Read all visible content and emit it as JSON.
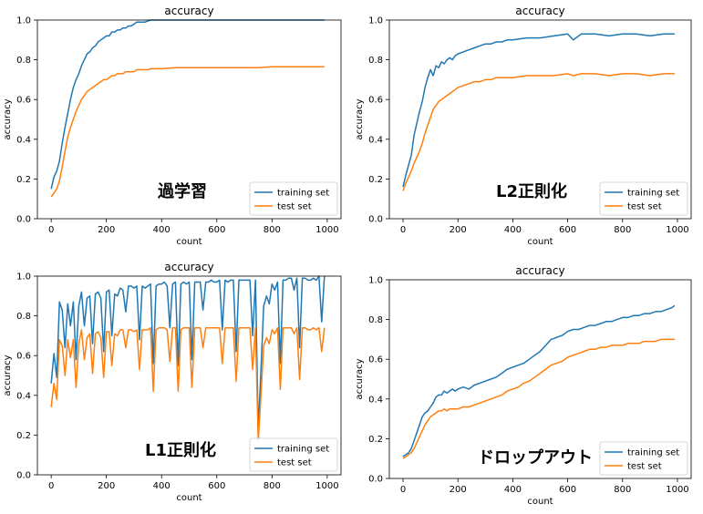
{
  "chart_data": [
    {
      "type": "line",
      "title": "accuracy",
      "xlabel": "count",
      "ylabel": "accuracy",
      "annotation": "過学習",
      "xlim": [
        -50,
        1050
      ],
      "ylim": [
        0,
        1.0
      ],
      "xticks": [
        "0",
        "200",
        "400",
        "600",
        "800",
        "1000"
      ],
      "yticks": [
        "0.0",
        "0.2",
        "0.4",
        "0.6",
        "0.8",
        "1.0"
      ],
      "legend": "lower-right",
      "x": [
        0,
        10,
        20,
        30,
        40,
        50,
        60,
        70,
        80,
        90,
        100,
        110,
        120,
        130,
        140,
        150,
        160,
        170,
        180,
        190,
        200,
        210,
        220,
        230,
        240,
        250,
        260,
        270,
        280,
        290,
        300,
        310,
        320,
        330,
        340,
        350,
        360,
        370,
        380,
        390,
        400,
        450,
        500,
        550,
        600,
        650,
        700,
        750,
        800,
        850,
        900,
        950,
        990
      ],
      "series": [
        {
          "name": "training set",
          "color": "#1f77b4",
          "values": [
            0.15,
            0.21,
            0.24,
            0.29,
            0.38,
            0.46,
            0.53,
            0.6,
            0.66,
            0.7,
            0.73,
            0.77,
            0.8,
            0.83,
            0.84,
            0.86,
            0.87,
            0.89,
            0.9,
            0.91,
            0.92,
            0.92,
            0.94,
            0.94,
            0.95,
            0.95,
            0.96,
            0.96,
            0.97,
            0.97,
            0.98,
            0.99,
            0.99,
            0.99,
            0.99,
            0.995,
            1.0,
            1.0,
            1.0,
            1.0,
            1.0,
            1.0,
            1.0,
            1.0,
            1.0,
            1.0,
            1.0,
            1.0,
            1.0,
            1.0,
            1.0,
            1.0,
            1.0
          ]
        },
        {
          "name": "test set",
          "color": "#ff7f0e",
          "values": [
            0.11,
            0.13,
            0.15,
            0.19,
            0.26,
            0.34,
            0.41,
            0.46,
            0.5,
            0.54,
            0.57,
            0.6,
            0.62,
            0.64,
            0.65,
            0.66,
            0.67,
            0.68,
            0.69,
            0.7,
            0.7,
            0.71,
            0.72,
            0.72,
            0.73,
            0.73,
            0.73,
            0.74,
            0.74,
            0.74,
            0.74,
            0.75,
            0.75,
            0.75,
            0.75,
            0.75,
            0.755,
            0.755,
            0.755,
            0.755,
            0.755,
            0.76,
            0.76,
            0.76,
            0.76,
            0.76,
            0.76,
            0.76,
            0.765,
            0.765,
            0.765,
            0.765,
            0.765
          ]
        }
      ]
    },
    {
      "type": "line",
      "title": "accuracy",
      "xlabel": "count",
      "ylabel": "accuracy",
      "annotation": "L2正則化",
      "xlim": [
        -50,
        1050
      ],
      "ylim": [
        0,
        1.0
      ],
      "xticks": [
        "0",
        "200",
        "400",
        "600",
        "800",
        "1000"
      ],
      "yticks": [
        "0.0",
        "0.2",
        "0.4",
        "0.6",
        "0.8",
        "1.0"
      ],
      "legend": "lower-right",
      "x": [
        0,
        10,
        20,
        30,
        40,
        50,
        60,
        70,
        80,
        90,
        100,
        110,
        120,
        130,
        140,
        150,
        160,
        170,
        180,
        190,
        200,
        220,
        240,
        260,
        280,
        300,
        320,
        340,
        360,
        380,
        400,
        450,
        500,
        550,
        600,
        620,
        650,
        700,
        750,
        800,
        850,
        900,
        950,
        990
      ],
      "series": [
        {
          "name": "training set",
          "color": "#1f77b4",
          "values": [
            0.16,
            0.22,
            0.27,
            0.32,
            0.42,
            0.48,
            0.54,
            0.59,
            0.66,
            0.71,
            0.75,
            0.72,
            0.77,
            0.76,
            0.79,
            0.78,
            0.8,
            0.81,
            0.8,
            0.82,
            0.83,
            0.84,
            0.85,
            0.86,
            0.87,
            0.88,
            0.88,
            0.89,
            0.89,
            0.9,
            0.9,
            0.91,
            0.91,
            0.92,
            0.93,
            0.9,
            0.93,
            0.93,
            0.92,
            0.93,
            0.93,
            0.92,
            0.93,
            0.93
          ]
        },
        {
          "name": "test set",
          "color": "#ff7f0e",
          "values": [
            0.14,
            0.18,
            0.21,
            0.24,
            0.28,
            0.31,
            0.34,
            0.38,
            0.43,
            0.47,
            0.51,
            0.55,
            0.57,
            0.59,
            0.6,
            0.61,
            0.62,
            0.63,
            0.64,
            0.65,
            0.66,
            0.67,
            0.68,
            0.69,
            0.69,
            0.7,
            0.7,
            0.71,
            0.71,
            0.71,
            0.71,
            0.72,
            0.72,
            0.72,
            0.73,
            0.72,
            0.73,
            0.73,
            0.72,
            0.73,
            0.73,
            0.72,
            0.73,
            0.73
          ]
        }
      ]
    },
    {
      "type": "line",
      "title": "accuracy",
      "xlabel": "count",
      "ylabel": "accuracy",
      "annotation": "L1正則化",
      "xlim": [
        -50,
        1050
      ],
      "ylim": [
        0,
        1.0
      ],
      "xticks": [
        "0",
        "200",
        "400",
        "600",
        "800",
        "1000"
      ],
      "yticks": [
        "0.0",
        "0.2",
        "0.4",
        "0.6",
        "0.8",
        "1.0"
      ],
      "legend": "lower-right",
      "x": [
        0,
        10,
        20,
        30,
        40,
        50,
        60,
        70,
        80,
        90,
        100,
        110,
        120,
        130,
        140,
        150,
        160,
        170,
        180,
        190,
        200,
        210,
        220,
        230,
        240,
        250,
        260,
        270,
        280,
        290,
        300,
        310,
        320,
        330,
        340,
        350,
        360,
        370,
        380,
        390,
        400,
        410,
        420,
        430,
        440,
        450,
        460,
        470,
        480,
        490,
        500,
        510,
        520,
        530,
        540,
        550,
        560,
        570,
        580,
        590,
        600,
        610,
        620,
        630,
        640,
        650,
        660,
        670,
        680,
        690,
        700,
        710,
        720,
        730,
        740,
        750,
        760,
        770,
        780,
        790,
        800,
        810,
        820,
        830,
        840,
        850,
        860,
        870,
        880,
        890,
        900,
        910,
        920,
        930,
        940,
        950,
        960,
        970,
        980,
        990
      ],
      "series": [
        {
          "name": "training set",
          "color": "#1f77b4",
          "values": [
            0.46,
            0.61,
            0.49,
            0.87,
            0.83,
            0.64,
            0.86,
            0.75,
            0.87,
            0.58,
            0.85,
            0.92,
            0.75,
            0.89,
            0.9,
            0.66,
            0.91,
            0.92,
            0.89,
            0.62,
            0.92,
            0.93,
            0.7,
            0.91,
            0.9,
            0.94,
            0.93,
            0.82,
            0.95,
            0.95,
            0.94,
            0.95,
            0.68,
            0.95,
            0.94,
            0.95,
            0.96,
            0.56,
            0.95,
            0.96,
            0.96,
            0.97,
            0.95,
            0.74,
            0.96,
            0.97,
            0.55,
            0.96,
            0.97,
            0.96,
            0.97,
            0.58,
            0.97,
            0.97,
            0.97,
            0.83,
            0.97,
            0.97,
            0.98,
            0.97,
            0.97,
            0.98,
            0.73,
            0.98,
            0.97,
            0.98,
            0.98,
            0.62,
            0.98,
            0.98,
            0.98,
            0.98,
            0.98,
            0.7,
            0.98,
            0.22,
            0.53,
            0.85,
            0.9,
            0.86,
            0.96,
            0.93,
            0.97,
            0.56,
            0.98,
            0.98,
            0.99,
            0.99,
            0.93,
            0.99,
            0.64,
            0.99,
            0.99,
            0.98,
            0.98,
            0.99,
            0.98,
            1.0,
            0.77,
            1.0
          ]
        },
        {
          "name": "test set",
          "color": "#ff7f0e",
          "values": [
            0.34,
            0.46,
            0.38,
            0.68,
            0.65,
            0.5,
            0.68,
            0.59,
            0.68,
            0.44,
            0.66,
            0.73,
            0.58,
            0.69,
            0.71,
            0.51,
            0.71,
            0.72,
            0.69,
            0.49,
            0.72,
            0.72,
            0.55,
            0.71,
            0.7,
            0.73,
            0.73,
            0.64,
            0.73,
            0.73,
            0.72,
            0.73,
            0.53,
            0.73,
            0.73,
            0.73,
            0.74,
            0.42,
            0.73,
            0.74,
            0.74,
            0.74,
            0.73,
            0.57,
            0.74,
            0.74,
            0.42,
            0.73,
            0.74,
            0.74,
            0.74,
            0.44,
            0.74,
            0.74,
            0.74,
            0.64,
            0.74,
            0.74,
            0.74,
            0.74,
            0.74,
            0.74,
            0.56,
            0.74,
            0.74,
            0.74,
            0.74,
            0.47,
            0.74,
            0.74,
            0.74,
            0.74,
            0.74,
            0.53,
            0.74,
            0.17,
            0.4,
            0.65,
            0.69,
            0.66,
            0.73,
            0.71,
            0.74,
            0.43,
            0.74,
            0.74,
            0.74,
            0.74,
            0.71,
            0.74,
            0.48,
            0.74,
            0.74,
            0.73,
            0.73,
            0.74,
            0.73,
            0.74,
            0.62,
            0.74
          ]
        }
      ]
    },
    {
      "type": "line",
      "title": "accuracy",
      "xlabel": "count",
      "ylabel": "accuracy",
      "annotation": "ドロップアウト",
      "xlim": [
        -50,
        1050
      ],
      "ylim": [
        0,
        1.0
      ],
      "xticks": [
        "0",
        "200",
        "400",
        "600",
        "800",
        "1000"
      ],
      "yticks": [
        "0.0",
        "0.2",
        "0.4",
        "0.6",
        "0.8",
        "1.0"
      ],
      "legend": "lower-right",
      "x": [
        0,
        10,
        20,
        30,
        40,
        50,
        60,
        70,
        80,
        90,
        100,
        110,
        120,
        130,
        140,
        150,
        160,
        170,
        180,
        190,
        200,
        220,
        240,
        260,
        280,
        300,
        320,
        340,
        360,
        380,
        400,
        420,
        440,
        460,
        480,
        500,
        520,
        540,
        560,
        580,
        600,
        620,
        640,
        660,
        680,
        700,
        720,
        740,
        760,
        780,
        800,
        820,
        840,
        860,
        880,
        900,
        920,
        940,
        960,
        980,
        990
      ],
      "series": [
        {
          "name": "training set",
          "color": "#1f77b4",
          "values": [
            0.11,
            0.12,
            0.13,
            0.15,
            0.19,
            0.23,
            0.27,
            0.31,
            0.33,
            0.34,
            0.36,
            0.38,
            0.41,
            0.42,
            0.42,
            0.44,
            0.43,
            0.44,
            0.45,
            0.44,
            0.45,
            0.46,
            0.45,
            0.47,
            0.48,
            0.49,
            0.5,
            0.51,
            0.53,
            0.55,
            0.56,
            0.57,
            0.58,
            0.6,
            0.62,
            0.64,
            0.67,
            0.7,
            0.71,
            0.72,
            0.74,
            0.75,
            0.75,
            0.76,
            0.77,
            0.77,
            0.78,
            0.79,
            0.79,
            0.8,
            0.81,
            0.81,
            0.82,
            0.82,
            0.83,
            0.83,
            0.84,
            0.84,
            0.85,
            0.86,
            0.87
          ]
        },
        {
          "name": "test set",
          "color": "#ff7f0e",
          "values": [
            0.1,
            0.11,
            0.12,
            0.13,
            0.15,
            0.18,
            0.21,
            0.24,
            0.27,
            0.29,
            0.31,
            0.32,
            0.33,
            0.34,
            0.34,
            0.35,
            0.34,
            0.35,
            0.35,
            0.35,
            0.35,
            0.36,
            0.36,
            0.37,
            0.38,
            0.39,
            0.4,
            0.41,
            0.42,
            0.44,
            0.45,
            0.46,
            0.48,
            0.49,
            0.51,
            0.53,
            0.55,
            0.57,
            0.58,
            0.59,
            0.61,
            0.62,
            0.63,
            0.64,
            0.65,
            0.65,
            0.66,
            0.66,
            0.67,
            0.67,
            0.67,
            0.68,
            0.68,
            0.68,
            0.69,
            0.69,
            0.69,
            0.7,
            0.7,
            0.7,
            0.7
          ]
        }
      ]
    }
  ]
}
